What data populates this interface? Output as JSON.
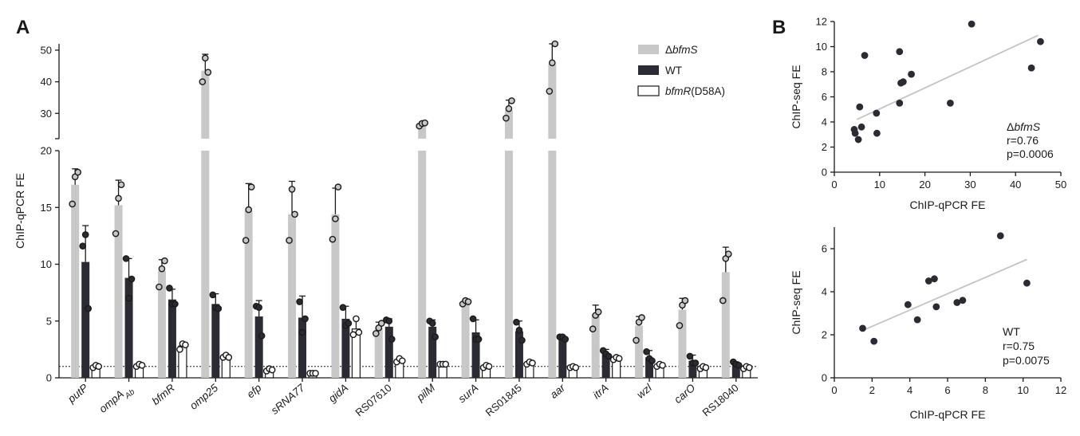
{
  "panels": {
    "a": "A",
    "b": "B"
  },
  "colors": {
    "deltaBfmS": "#c8c8c8",
    "wt": "#2b2b33",
    "mutant": "#ffffff",
    "fitLine": "#c4c4c4",
    "points": "#2b2b33"
  },
  "legend": [
    {
      "symbol": "Δ",
      "name": "bfmS",
      "italic": true
    },
    {
      "symbol": "",
      "name": "WT",
      "italic": false
    },
    {
      "symbol": "",
      "name": "bfmR",
      "suffix": "(D58A)",
      "italic": true
    }
  ],
  "chart_data": [
    {
      "type": "bar",
      "title": "",
      "xlabel": "",
      "ylabel": "ChIP-qPCR FE",
      "broken_axis": {
        "lower_range": [
          0,
          20
        ],
        "upper_range": [
          22,
          52
        ],
        "lower_ticks": [
          "0",
          "5",
          "10",
          "15",
          "20"
        ],
        "upper_ticks": [
          "30",
          "40",
          "50"
        ]
      },
      "reference_line": 1,
      "categories": [
        "putP",
        "ompA",
        "bfmR",
        "omp25",
        "efp",
        "sRNA77",
        "gidA",
        "RS07610",
        "pilM",
        "surA",
        "RS01845",
        "aar",
        "itrA",
        "wzl",
        "carO",
        "RS18040"
      ],
      "category_subscripts": {
        "ompA": "Ab"
      },
      "italic_categories": [
        "putP",
        "ompA",
        "bfmR",
        "omp25",
        "efp",
        "sRNA77",
        "gidA",
        "pilM",
        "surA",
        "aar",
        "itrA",
        "wzl",
        "carO"
      ],
      "series": [
        {
          "name": "ΔbfmS",
          "values": [
            17.0,
            15.2,
            9.4,
            43.5,
            14.7,
            14.4,
            14.4,
            4.4,
            26.6,
            6.7,
            31.0,
            45.5,
            5.6,
            4.6,
            6.0,
            9.3
          ],
          "errors": [
            1.4,
            2.2,
            1.0,
            5.2,
            2.4,
            2.9,
            2.3,
            0.5,
            0.7,
            0.2,
            3.2,
            8.0,
            0.8,
            0.8,
            1.0,
            2.2
          ],
          "points": [
            [
              15.3,
              17.7,
              18.1
            ],
            [
              12.7,
              15.8,
              17.0
            ],
            [
              8.0,
              9.6,
              10.3
            ],
            [
              40.0,
              47.5,
              43.0
            ],
            [
              12.1,
              14.8,
              16.8
            ],
            [
              12.1,
              16.6,
              14.4
            ],
            [
              12.2,
              14.0,
              16.8
            ],
            [
              3.9,
              4.4,
              4.8
            ],
            [
              26.0,
              26.8,
              27.0
            ],
            [
              6.5,
              6.8,
              6.7
            ],
            [
              28.5,
              31.5,
              34.0
            ],
            [
              37.0,
              46.0,
              53.0
            ],
            [
              4.3,
              5.5,
              5.8
            ],
            [
              3.3,
              4.9,
              5.3
            ],
            [
              4.6,
              6.4,
              6.8
            ],
            [
              6.8,
              10.5,
              10.9
            ]
          ]
        },
        {
          "name": "WT",
          "values": [
            10.2,
            8.8,
            6.9,
            6.5,
            5.4,
            5.3,
            5.2,
            4.5,
            4.5,
            4.0,
            4.1,
            3.5,
            2.1,
            1.8,
            1.5,
            1.2
          ],
          "errors": [
            3.2,
            1.7,
            0.9,
            0.9,
            1.4,
            1.9,
            1.1,
            0.7,
            0.6,
            1.1,
            0.9,
            0.2,
            0.4,
            0.6,
            0.5,
            0.2
          ],
          "points": [
            [
              11.6,
              12.6,
              6.1
            ],
            [
              10.5,
              7.0,
              8.7
            ],
            [
              7.9,
              6.5,
              6.5
            ],
            [
              7.3,
              6.2,
              6.1
            ],
            [
              6.3,
              6.2,
              3.7
            ],
            [
              6.7,
              4.0,
              5.2
            ],
            [
              6.2,
              4.6,
              4.8
            ],
            [
              5.1,
              5.0,
              3.4
            ],
            [
              5.0,
              4.8,
              3.6
            ],
            [
              5.2,
              3.4,
              3.4
            ],
            [
              4.9,
              4.2,
              3.3
            ],
            [
              3.6,
              3.6,
              3.4
            ],
            [
              2.4,
              2.1,
              1.9
            ],
            [
              2.3,
              1.7,
              1.5
            ],
            [
              1.9,
              1.3,
              1.3
            ],
            [
              1.4,
              1.2,
              1.1
            ]
          ]
        },
        {
          "name": "bfmR(D58A)",
          "values": [
            1.0,
            1.1,
            2.8,
            1.9,
            0.7,
            0.4,
            4.3,
            1.5,
            1.2,
            1.0,
            1.3,
            0.9,
            1.7,
            1.1,
            0.9,
            0.9
          ],
          "errors": [
            0.1,
            0.2,
            0.3,
            0.2,
            0.1,
            0.1,
            0.9,
            0.2,
            0.1,
            0.1,
            0.2,
            0.1,
            0.2,
            0.2,
            0.1,
            0.1
          ],
          "points": [
            [
              0.9,
              1.1,
              1.0
            ],
            [
              1.0,
              1.2,
              1.1
            ],
            [
              2.5,
              3.0,
              2.9
            ],
            [
              1.8,
              2.0,
              1.8
            ],
            [
              0.6,
              0.8,
              0.7
            ],
            [
              0.4,
              0.4,
              0.4
            ],
            [
              3.8,
              5.2,
              4.0
            ],
            [
              1.4,
              1.7,
              1.5
            ],
            [
              1.2,
              1.2,
              1.2
            ],
            [
              0.9,
              1.1,
              1.0
            ],
            [
              1.2,
              1.4,
              1.3
            ],
            [
              0.9,
              1.0,
              0.9
            ],
            [
              1.6,
              1.8,
              1.7
            ],
            [
              1.0,
              1.2,
              1.1
            ],
            [
              0.8,
              1.0,
              0.9
            ],
            [
              0.8,
              1.0,
              0.9
            ]
          ]
        }
      ]
    },
    {
      "type": "scatter",
      "title": "",
      "xlabel": "ChIP-qPCR FE",
      "ylabel": "ChIP-seq FE",
      "xlim": [
        0,
        50
      ],
      "ylim": [
        0,
        12
      ],
      "xticks": [
        0,
        10,
        20,
        30,
        40,
        50
      ],
      "yticks": [
        0,
        2,
        4,
        6,
        8,
        10,
        12
      ],
      "x": [
        4.4,
        4.6,
        5.3,
        5.6,
        6.0,
        6.7,
        9.3,
        9.4,
        14.4,
        14.4,
        14.7,
        15.2,
        17.0,
        25.6,
        30.3,
        43.5,
        45.5
      ],
      "y": [
        3.4,
        3.1,
        2.6,
        5.2,
        3.6,
        9.3,
        4.7,
        3.1,
        5.5,
        9.6,
        7.1,
        7.2,
        7.8,
        5.5,
        11.8,
        8.3,
        10.4
      ],
      "fit": {
        "x": [
          5,
          45
        ],
        "y": [
          4.2,
          10.9
        ]
      },
      "annotation": {
        "strain": "ΔbfmS",
        "r": "r=0.76",
        "p": "p=0.0006"
      }
    },
    {
      "type": "scatter",
      "title": "",
      "xlabel": "ChIP-qPCR FE",
      "ylabel": "ChIP-seq FE",
      "xlim": [
        0,
        12
      ],
      "ylim": [
        0,
        7
      ],
      "xticks": [
        0,
        2,
        4,
        6,
        8,
        10,
        12
      ],
      "yticks": [
        0,
        2,
        4,
        6
      ],
      "x": [
        1.5,
        2.1,
        3.9,
        4.4,
        5.0,
        5.3,
        5.4,
        6.5,
        6.8,
        8.8,
        10.2
      ],
      "y": [
        2.3,
        1.7,
        3.4,
        2.7,
        4.5,
        4.6,
        3.3,
        3.5,
        3.6,
        6.6,
        4.4
      ],
      "fit": {
        "x": [
          1.5,
          10.2
        ],
        "y": [
          2.2,
          5.5
        ]
      },
      "annotation": {
        "strain": "WT",
        "r": "r=0.75",
        "p": "p=0.0075"
      }
    }
  ]
}
